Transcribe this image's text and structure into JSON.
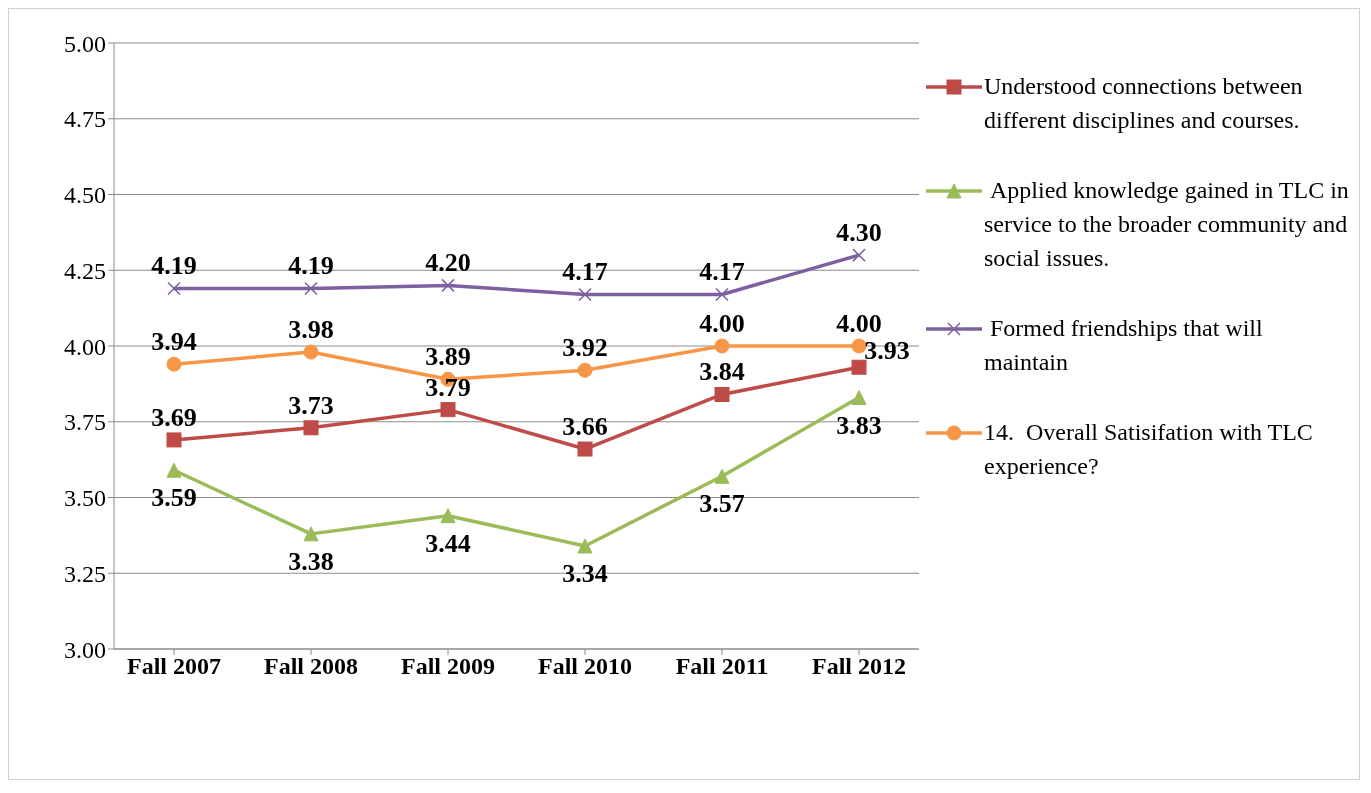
{
  "chart_data": {
    "type": "line",
    "categories": [
      "Fall 2007",
      "Fall 2008",
      "Fall 2009",
      "Fall 2010",
      "Fall 2011",
      "Fall 2012"
    ],
    "series": [
      {
        "name": "Understood connections between different disciplines and courses.",
        "color": "#be4b48",
        "marker": "square",
        "values": [
          3.69,
          3.73,
          3.79,
          3.66,
          3.84,
          3.93
        ],
        "value_labels": [
          "3.69",
          "3.73",
          "3.79",
          "3.66",
          "3.84",
          "3.93"
        ]
      },
      {
        "name": " Applied knowledge gained in TLC in service to the broader community and social issues.",
        "color": "#9bbb59",
        "marker": "triangle",
        "values": [
          3.59,
          3.38,
          3.44,
          3.34,
          3.57,
          3.83
        ],
        "value_labels": [
          "3.59",
          "3.38",
          "3.44",
          "3.34",
          "3.57",
          "3.83"
        ]
      },
      {
        "name": " Formed friendships that will maintain",
        "color": "#7d60a0",
        "marker": "cross",
        "values": [
          4.19,
          4.19,
          4.2,
          4.17,
          4.17,
          4.3
        ],
        "value_labels": [
          "4.19",
          "4.19",
          "4.20",
          "4.17",
          "4.17",
          "4.30"
        ]
      },
      {
        "name": "14.  Overall Satisifation with TLC experience?",
        "color": "#f79646",
        "marker": "circle",
        "values": [
          3.94,
          3.98,
          3.89,
          3.92,
          4.0,
          4.0
        ],
        "value_labels": [
          "3.94",
          "3.98",
          "3.89",
          "3.92",
          "4.00",
          "4.00"
        ]
      }
    ],
    "ylim": [
      3,
      5
    ],
    "yticks": [
      {
        "value": 3,
        "label": "3.00"
      },
      {
        "value": 3.25,
        "label": "3.25"
      },
      {
        "value": 3.5,
        "label": "3.50"
      },
      {
        "value": 3.75,
        "label": "3.75"
      },
      {
        "value": 4,
        "label": "4.00"
      },
      {
        "value": 4.25,
        "label": "4.25"
      },
      {
        "value": 4.5,
        "label": "4.50"
      },
      {
        "value": 4.75,
        "label": "4.75"
      },
      {
        "value": 5,
        "label": "5.00"
      }
    ],
    "grid": "y",
    "legend": "right"
  }
}
